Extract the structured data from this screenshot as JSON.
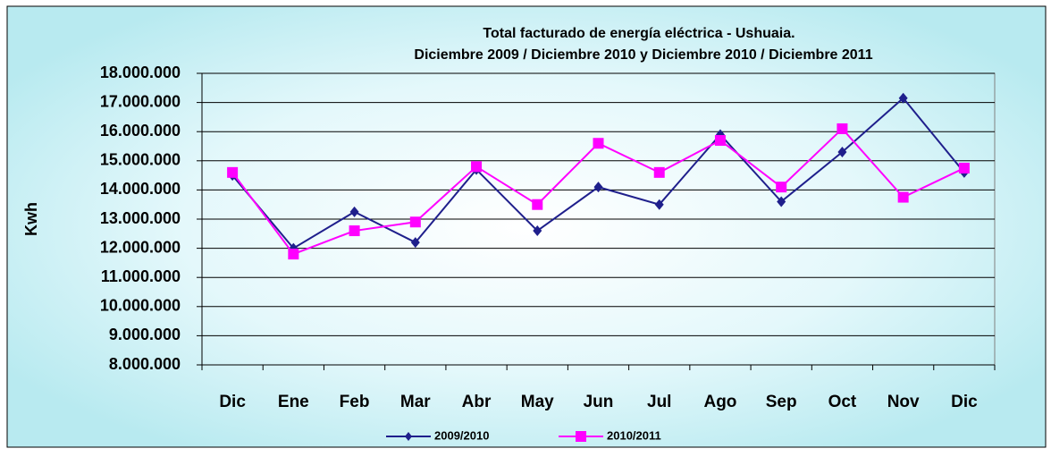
{
  "chart_data": {
    "type": "line",
    "title": "Total facturado de energía eléctrica - Ushuaia.",
    "subtitle": "Diciembre 2009  / Diciembre 2010 y Diciembre 2010  / Diciembre 2011",
    "y_label": "Kwh",
    "categories": [
      "Dic",
      "Ene",
      "Feb",
      "Mar",
      "Abr",
      "May",
      "Jun",
      "Jul",
      "Ago",
      "Sep",
      "Oct",
      "Nov",
      "Dic"
    ],
    "series": [
      {
        "name": "2009/2010",
        "color": "#1f1f8c",
        "marker": "diamond",
        "values": [
          14500000,
          12000000,
          13250000,
          12200000,
          14700000,
          12600000,
          14100000,
          13500000,
          15900000,
          13600000,
          15300000,
          17150000,
          14600000
        ]
      },
      {
        "name": "2010/2011",
        "color": "#ff00ff",
        "marker": "square",
        "values": [
          14600000,
          11800000,
          12600000,
          12900000,
          14800000,
          13500000,
          15600000,
          14600000,
          15700000,
          14100000,
          16100000,
          13750000,
          14750000
        ]
      }
    ],
    "ylim": [
      8000000,
      18000000
    ],
    "yticks": [
      {
        "value": 8000000,
        "label": "8.000.000"
      },
      {
        "value": 9000000,
        "label": "9.000.000"
      },
      {
        "value": 10000000,
        "label": "10.000.000"
      },
      {
        "value": 11000000,
        "label": "11.000.000"
      },
      {
        "value": 12000000,
        "label": "12.000.000"
      },
      {
        "value": 13000000,
        "label": "13.000.000"
      },
      {
        "value": 14000000,
        "label": "14.000.000"
      },
      {
        "value": 15000000,
        "label": "15.000.000"
      },
      {
        "value": 16000000,
        "label": "16.000.000"
      },
      {
        "value": 17000000,
        "label": "17.000.000"
      },
      {
        "value": 18000000,
        "label": "18.000.000"
      }
    ],
    "grid": true,
    "legend": "bottom"
  }
}
